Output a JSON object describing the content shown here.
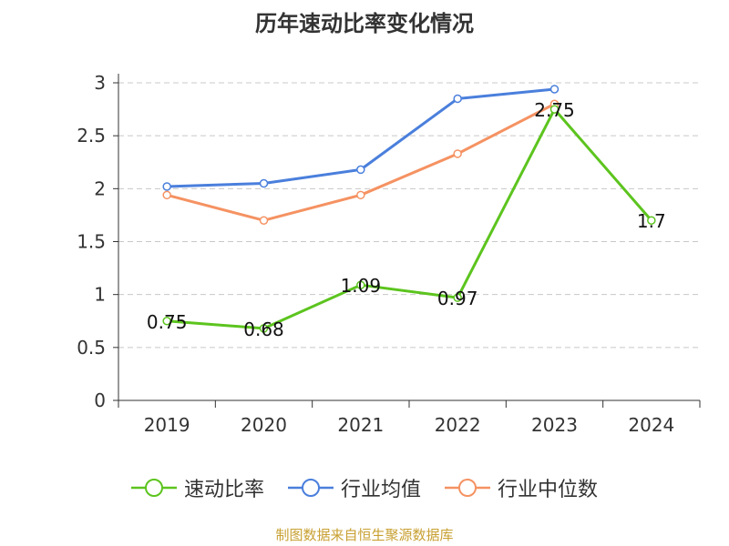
{
  "chart_data": {
    "type": "line",
    "title": "历年速动比率变化情况",
    "categories": [
      "2019",
      "2020",
      "2021",
      "2022",
      "2023",
      "2024"
    ],
    "ylim": [
      0,
      3
    ],
    "yticks": [
      "0",
      "0.5",
      "1",
      "1.5",
      "2",
      "2.5",
      "3"
    ],
    "grid": true,
    "legend_position": "bottom",
    "series": [
      {
        "name": "速动比率",
        "color": "#5cc41e",
        "values": [
          0.75,
          0.68,
          1.09,
          0.97,
          2.75,
          1.7
        ],
        "labels": [
          "0.75",
          "0.68",
          "1.09",
          "0.97",
          "2.75",
          "1.7"
        ]
      },
      {
        "name": "行业均值",
        "color": "#4a7fdc",
        "values": [
          2.02,
          2.05,
          2.18,
          2.85,
          2.94,
          null
        ]
      },
      {
        "name": "行业中位数",
        "color": "#f59262",
        "values": [
          1.94,
          1.7,
          1.94,
          2.33,
          2.8,
          null
        ]
      }
    ]
  },
  "source": "制图数据来自恒生聚源数据库"
}
